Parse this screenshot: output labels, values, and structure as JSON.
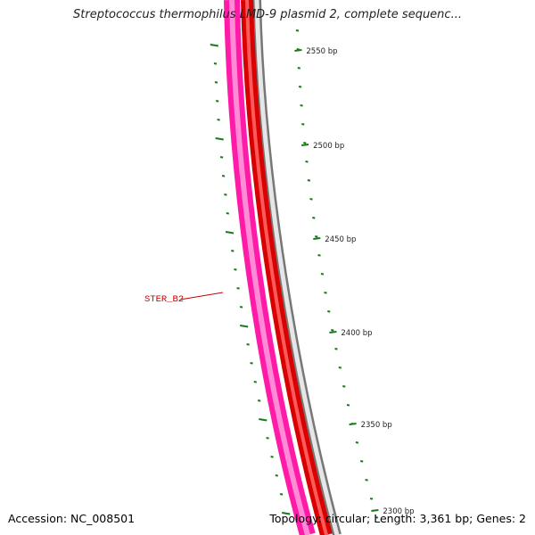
{
  "title": "Streptococcus thermophilus LMD-9 plasmid 2, complete sequenc...",
  "footer": {
    "accession": "Accession: NC_008501",
    "topology": "Topology: circular; Length: 3,361 bp; Genes: 2"
  },
  "feature_label": "STER_B2",
  "tick_labels": [
    "2550 bp",
    "2500 bp",
    "2450 bp",
    "2400 bp",
    "2350 bp",
    "2300 bp"
  ],
  "colors": {
    "gene_track": "#ff1493",
    "cds_track": "#ff0000",
    "backbone": "#888888",
    "ticks": "#1a7a1a",
    "feature_label": "#cc0000"
  }
}
